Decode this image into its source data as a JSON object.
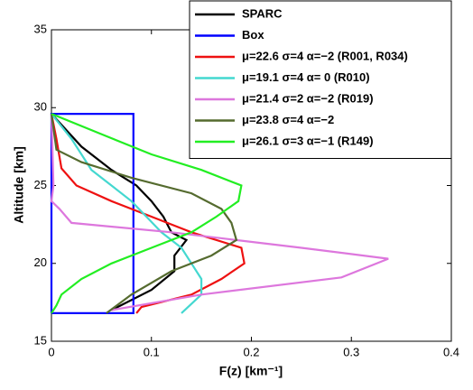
{
  "chart_data": {
    "type": "line",
    "xlabel": "F(z) [km⁻¹]",
    "ylabel": "Altitude [km]",
    "xlim": [
      0,
      0.4
    ],
    "xticks": [
      0,
      0.1,
      0.2,
      0.3,
      0.4
    ],
    "ylim": [
      15,
      35
    ],
    "yticks": [
      15,
      20,
      25,
      30,
      35
    ],
    "legend": "top-right",
    "series": [
      {
        "name": "SPARC",
        "color": "#000000",
        "x": [
          0,
          0.03,
          0.06,
          0.085,
          0.1,
          0.112,
          0.12,
          0.135,
          0.123,
          0.123,
          0.1,
          0.06
        ],
        "values": [
          29.6,
          27.5,
          26,
          25,
          24,
          23,
          22,
          21.5,
          20.5,
          19.5,
          18.3,
          17
        ]
      },
      {
        "name": "Box",
        "color": "#0000ff",
        "x": [
          0,
          0,
          0.082,
          0.082,
          0
        ],
        "values": [
          16.8,
          29.6,
          29.6,
          16.8,
          16.8
        ]
      },
      {
        "name": "μ=22.6 σ=4 α=−2 (R001, R034)",
        "color": "#ee1111",
        "x": [
          0,
          0.005,
          0.01,
          0.025,
          0.06,
          0.1,
          0.14,
          0.19,
          0.193,
          0.17,
          0.14,
          0.09,
          0.085
        ],
        "values": [
          29.6,
          28,
          26.1,
          25,
          24,
          23,
          22,
          21,
          20,
          19,
          18,
          17.2,
          16.8
        ]
      },
      {
        "name": "μ=19.1 σ=4 α= 0 (R010)",
        "color": "#44d8d0",
        "x": [
          0,
          0.02,
          0.04,
          0.06,
          0.08,
          0.095,
          0.11,
          0.13,
          0.14,
          0.15,
          0.15,
          0.13
        ],
        "values": [
          29.6,
          28,
          26,
          25,
          24,
          23,
          22,
          21,
          20,
          19,
          18,
          16.8
        ]
      },
      {
        "name": "μ=21.4 σ=2 α=−2 (R019)",
        "color": "#dd77dd",
        "x": [
          0,
          0.002,
          0,
          0.008,
          0.02,
          0.12,
          0.25,
          0.337,
          0.29,
          0.15,
          0.06
        ],
        "values": [
          29.6,
          25,
          24,
          23.5,
          22.6,
          22,
          21,
          20.3,
          19.1,
          18,
          17
        ]
      },
      {
        "name": "μ=23.8 σ=4 α=−2",
        "color": "#556b2f",
        "x": [
          0,
          0.005,
          0.03,
          0.08,
          0.14,
          0.17,
          0.18,
          0.185,
          0.16,
          0.12,
          0.08,
          0.055
        ],
        "values": [
          29.6,
          27.3,
          26.5,
          25.5,
          24.5,
          23.5,
          22.6,
          21.5,
          20.5,
          19.5,
          18,
          16.8
        ]
      },
      {
        "name": "μ=26.1 σ=3 α=−1 (R149)",
        "color": "#22ee22",
        "x": [
          0,
          0.05,
          0.1,
          0.15,
          0.19,
          0.187,
          0.165,
          0.14,
          0.1,
          0.06,
          0.03,
          0.01,
          0.005,
          0
        ],
        "values": [
          29.6,
          28.3,
          27,
          26,
          25,
          24,
          23,
          22,
          21,
          20,
          19,
          18,
          17.3,
          16.8
        ]
      }
    ]
  }
}
